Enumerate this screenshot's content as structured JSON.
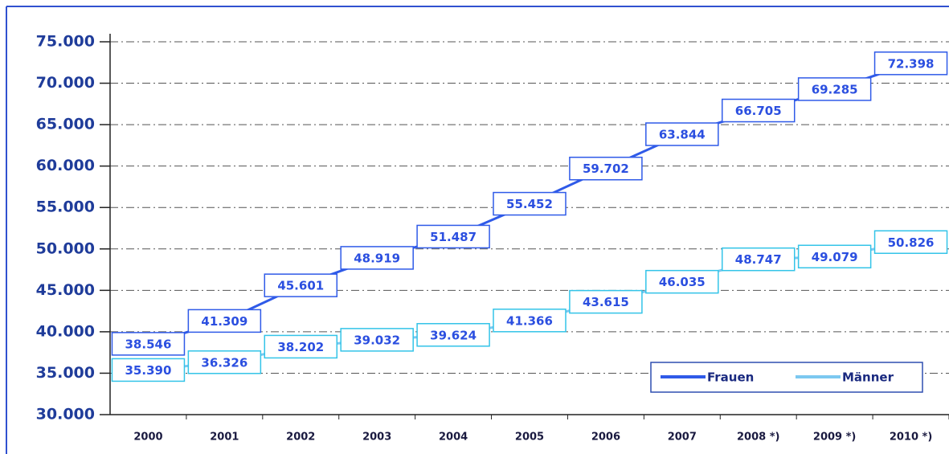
{
  "chart_data": {
    "type": "line",
    "categories": [
      "2000",
      "2001",
      "2002",
      "2003",
      "2004",
      "2005",
      "2006",
      "2007",
      "2008 *)",
      "2009 *)",
      "2010 *)"
    ],
    "series": [
      {
        "name": "Frauen",
        "color": "#2f5ae8",
        "values": [
          38546,
          41309,
          45601,
          48919,
          51487,
          55452,
          59702,
          63844,
          66705,
          69285,
          72398
        ],
        "value_labels": [
          "38.546",
          "41.309",
          "45.601",
          "48.919",
          "51.487",
          "55.452",
          "59.702",
          "63.844",
          "66.705",
          "69.285",
          "72.398"
        ]
      },
      {
        "name": "Männer",
        "color": "#7cc8f0",
        "values": [
          35390,
          36326,
          38202,
          39032,
          39624,
          41366,
          43615,
          46035,
          48747,
          49079,
          50826
        ],
        "value_labels": [
          "35.390",
          "36.326",
          "38.202",
          "39.032",
          "39.624",
          "41.366",
          "43.615",
          "46.035",
          "48.747",
          "49.079",
          "50.826"
        ]
      }
    ],
    "ylim": [
      30000,
      75000
    ],
    "yticks": [
      {
        "value": 30000,
        "label": "30.000"
      },
      {
        "value": 35000,
        "label": "35.000"
      },
      {
        "value": 40000,
        "label": "40.000"
      },
      {
        "value": 45000,
        "label": "45.000"
      },
      {
        "value": 50000,
        "label": "50.000"
      },
      {
        "value": 55000,
        "label": "55.000"
      },
      {
        "value": 60000,
        "label": "60.000"
      },
      {
        "value": 65000,
        "label": "65.000"
      },
      {
        "value": 70000,
        "label": "70.000"
      },
      {
        "value": 75000,
        "label": "75.000"
      }
    ],
    "grid": true,
    "legend": "lower right"
  }
}
